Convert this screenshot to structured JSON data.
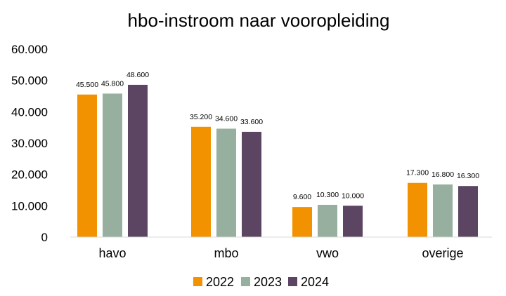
{
  "chart_data": {
    "type": "bar",
    "title": "hbo-instroom naar vooropleiding",
    "categories": [
      "havo",
      "mbo",
      "vwo",
      "overige"
    ],
    "series": [
      {
        "name": "2022",
        "color": "#F39200",
        "values": [
          45500,
          35200,
          9600,
          17300
        ],
        "labels": [
          "45.500",
          "35.200",
          "9.600",
          "17.300"
        ]
      },
      {
        "name": "2023",
        "color": "#97AF9F",
        "values": [
          45800,
          34600,
          10300,
          16800
        ],
        "labels": [
          "45.800",
          "34.600",
          "10.300",
          "16.800"
        ]
      },
      {
        "name": "2024",
        "color": "#5C4463",
        "values": [
          48600,
          33600,
          10000,
          16300
        ],
        "labels": [
          "48.600",
          "33.600",
          "10.000",
          "16.300"
        ]
      }
    ],
    "yticks": [
      0,
      10000,
      20000,
      30000,
      40000,
      50000,
      60000
    ],
    "ytick_labels": [
      "0",
      "10.000",
      "20.000",
      "30.000",
      "40.000",
      "50.000",
      "60.000"
    ],
    "ylim": [
      0,
      60000
    ],
    "grid": false,
    "legend_position": "bottom"
  }
}
